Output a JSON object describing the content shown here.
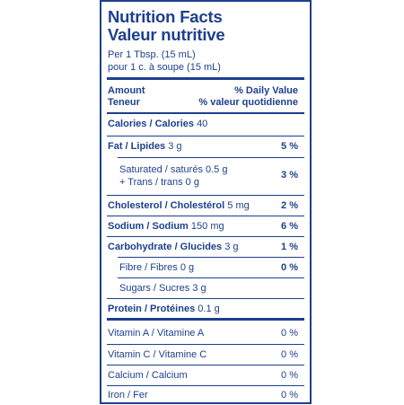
{
  "title_en": "Nutrition Facts",
  "title_fr": "Valeur nutritive",
  "serving_en": "Per 1 Tbsp. (15 mL)",
  "serving_fr": "pour 1 c. à soupe (15 mL)",
  "header": {
    "amount_en": "Amount",
    "amount_fr": "Teneur",
    "dv_en": "% Daily Value",
    "dv_fr": "% valeur quotidienne"
  },
  "calories": {
    "label": "Calories / Calories",
    "value": "40"
  },
  "fat": {
    "label": "Fat / Lipides",
    "value": "3 g",
    "pct": "5 %"
  },
  "saturated": {
    "label": "Saturated / saturés 0.5 g",
    "pct": "3 %"
  },
  "trans": {
    "label": "+ Trans / trans 0 g"
  },
  "cholesterol": {
    "label": "Cholesterol / Cholestérol",
    "value": "5 mg",
    "pct": "2 %"
  },
  "sodium": {
    "label": "Sodium / Sodium",
    "value": "150 mg",
    "pct": "6 %"
  },
  "carbohydrate": {
    "label": "Carbohydrate / Glucides",
    "value": "3 g",
    "pct": "1 %"
  },
  "fibre": {
    "label": "Fibre / Fibres 0 g",
    "pct": "0 %"
  },
  "sugars": {
    "label": "Sugars / Sucres 3 g"
  },
  "protein": {
    "label": "Protein / Protéines",
    "value": "0.1 g"
  },
  "vitamins": [
    {
      "label": "Vitamin A / Vitamine A",
      "pct": "0 %"
    },
    {
      "label": "Vitamin C / Vitamine C",
      "pct": "0 %"
    },
    {
      "label": "Calcium / Calcium",
      "pct": "0 %"
    },
    {
      "label": "Iron / Fer",
      "pct": "0 %"
    }
  ],
  "colors": {
    "ink": "#1d3f8e",
    "background": "#ffffff"
  }
}
